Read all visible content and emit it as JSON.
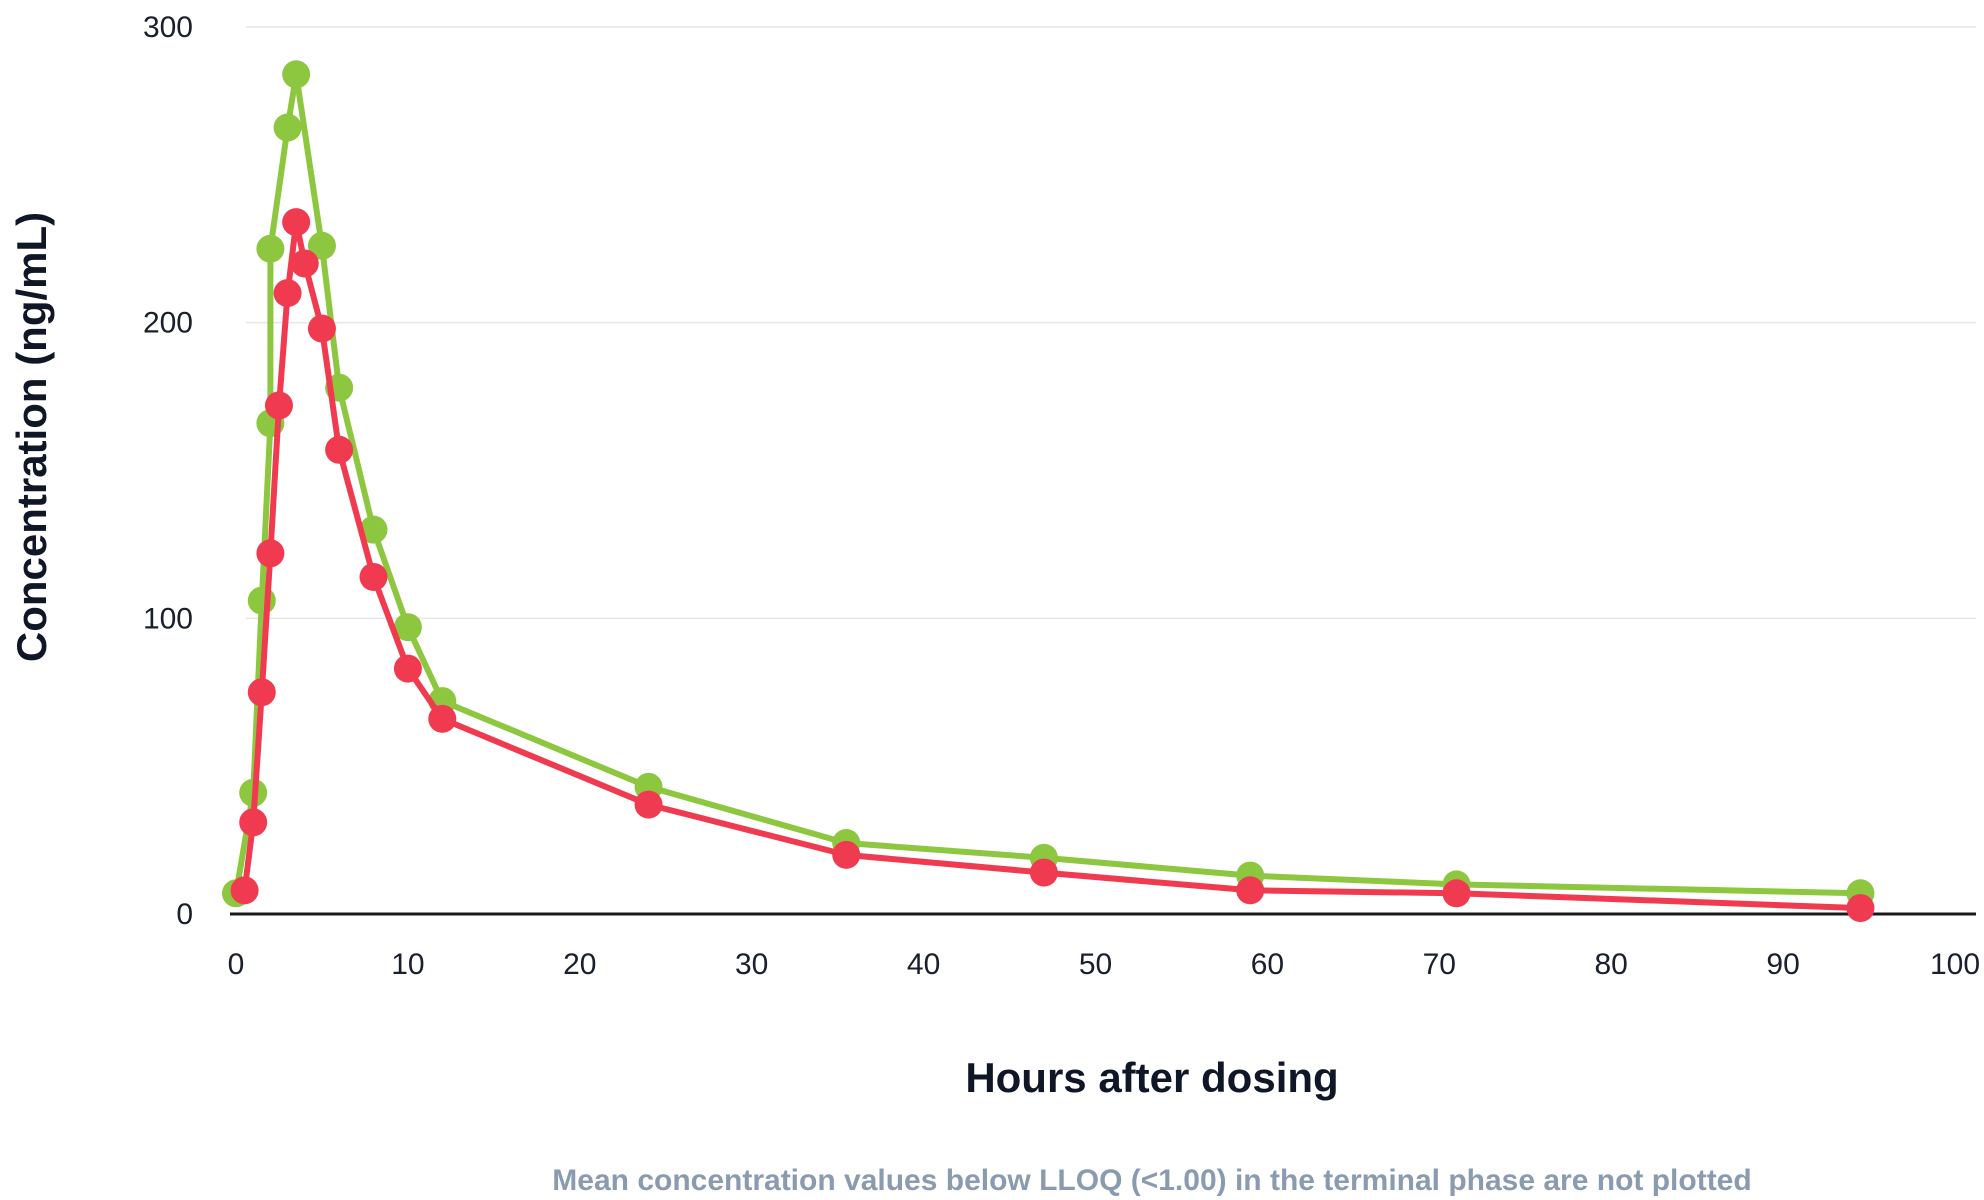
{
  "chart_data": {
    "type": "line",
    "title": "",
    "xlabel": "Hours after dosing",
    "ylabel": "Concentration (ng/mL)",
    "footnote": "Mean concentration values below LLOQ (<1.00) in the terminal phase are not plotted",
    "xlim": [
      0,
      100
    ],
    "ylim": [
      0,
      300
    ],
    "x_ticks": [
      "0",
      "10",
      "20",
      "30",
      "40",
      "50",
      "60",
      "70",
      "80",
      "90",
      "100"
    ],
    "y_ticks": [
      "0",
      "100",
      "200",
      "300"
    ],
    "grid": true,
    "legend": "none",
    "series": [
      {
        "color": "#8dc63f",
        "points": [
          [
            0,
            7
          ],
          [
            1,
            41
          ],
          [
            1.5,
            106
          ],
          [
            2,
            166
          ],
          [
            2,
            225
          ],
          [
            3,
            266
          ],
          [
            3.5,
            284
          ],
          [
            5,
            226
          ],
          [
            6,
            178
          ],
          [
            8,
            130
          ],
          [
            10,
            97
          ],
          [
            12,
            72
          ],
          [
            24,
            43
          ],
          [
            35.5,
            24
          ],
          [
            47,
            19
          ],
          [
            59,
            13
          ],
          [
            71,
            10
          ],
          [
            94.5,
            7
          ]
        ]
      },
      {
        "color": "#f03a4f",
        "points": [
          [
            0.5,
            8
          ],
          [
            1,
            31
          ],
          [
            1.5,
            75
          ],
          [
            2,
            122
          ],
          [
            2.5,
            172
          ],
          [
            3,
            210
          ],
          [
            3.5,
            234
          ],
          [
            4,
            220
          ],
          [
            5,
            198
          ],
          [
            6,
            157
          ],
          [
            8,
            114
          ],
          [
            10,
            83
          ],
          [
            12,
            66
          ],
          [
            24,
            37
          ],
          [
            35.5,
            20
          ],
          [
            47,
            14
          ],
          [
            59,
            8
          ],
          [
            71,
            7
          ],
          [
            94.5,
            2
          ]
        ]
      }
    ]
  }
}
